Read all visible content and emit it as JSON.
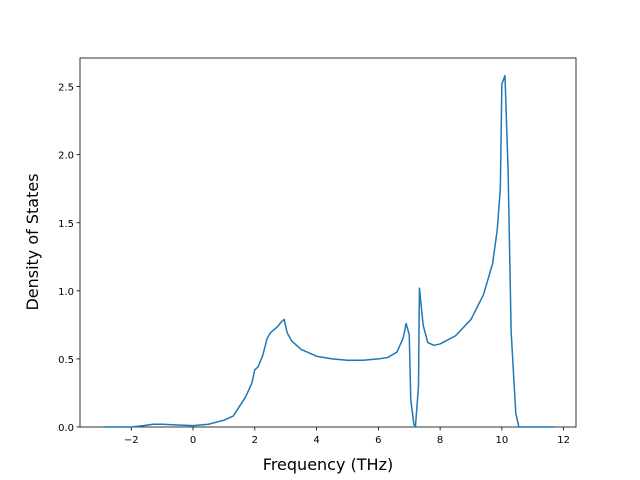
{
  "chart_data": {
    "type": "line",
    "xlabel": "Frequency (THz)",
    "ylabel": "Density of States",
    "color": "#1f77b4",
    "x": [
      -2.9,
      -2,
      -1.6,
      -1.3,
      -1,
      -0.5,
      0,
      0.5,
      1.0,
      1.3,
      1.5,
      1.7,
      1.9,
      2.0,
      2.1,
      2.25,
      2.4,
      2.5,
      2.6,
      2.75,
      2.85,
      2.95,
      3.05,
      3.2,
      3.5,
      4,
      4.5,
      5,
      5.5,
      6,
      6.3,
      6.6,
      6.8,
      6.9,
      7.0,
      7.05,
      7.15,
      7.2,
      7.3,
      7.33,
      7.45,
      7.6,
      7.8,
      8.0,
      8.5,
      9.0,
      9.4,
      9.7,
      9.85,
      9.95,
      10.0,
      10.1,
      10.2,
      10.3,
      10.4,
      10.45,
      10.55,
      11,
      11.7
    ],
    "values": [
      0,
      0,
      0.01,
      0.02,
      0.02,
      0.015,
      0.01,
      0.02,
      0.05,
      0.08,
      0.15,
      0.22,
      0.32,
      0.42,
      0.44,
      0.52,
      0.65,
      0.69,
      0.71,
      0.74,
      0.77,
      0.79,
      0.69,
      0.63,
      0.57,
      0.52,
      0.5,
      0.49,
      0.49,
      0.5,
      0.51,
      0.55,
      0.65,
      0.76,
      0.68,
      0.2,
      0.02,
      0.0,
      0.3,
      1.02,
      0.75,
      0.62,
      0.6,
      0.61,
      0.67,
      0.79,
      0.97,
      1.2,
      1.45,
      1.75,
      2.52,
      2.58,
      1.9,
      0.7,
      0.3,
      0.1,
      0.0,
      0,
      0
    ],
    "xlim": [
      -3.66,
      12.4
    ],
    "ylim": [
      0,
      2.71
    ],
    "xticks": [
      {
        "value": -2,
        "label": "−2"
      },
      0,
      2,
      4,
      6,
      8,
      10,
      12
    ],
    "yticks": [
      {
        "value": 0,
        "label": "0.0"
      },
      {
        "value": 0.5,
        "label": "0.5"
      },
      {
        "value": 1,
        "label": "1.0"
      },
      {
        "value": 1.5,
        "label": "1.5"
      },
      {
        "value": 2,
        "label": "2.0"
      },
      {
        "value": 2.5,
        "label": "2.5"
      }
    ]
  }
}
